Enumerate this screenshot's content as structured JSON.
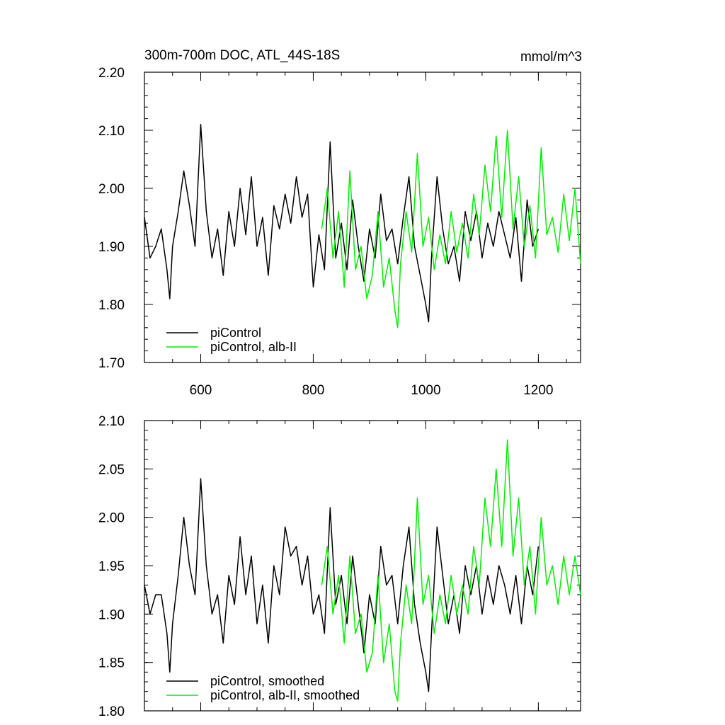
{
  "chart_data": [
    {
      "type": "line",
      "title": "300m-700m DOC, ATL_44S-18S",
      "units": "mmol/m^3",
      "xlim": [
        500,
        1275
      ],
      "ylim": [
        1.7,
        2.2
      ],
      "x_ticks": [
        600,
        800,
        1000,
        1200
      ],
      "x_tick_labels": [
        "600",
        "800",
        "1000",
        "1200"
      ],
      "y_ticks": [
        1.7,
        1.8,
        1.9,
        2.0,
        2.1,
        2.2
      ],
      "y_tick_labels": [
        "1.70",
        "1.80",
        "1.90",
        "2.00",
        "2.10",
        "2.20"
      ],
      "show_x_tick_labels": true,
      "legend_position": "bottom-left",
      "grid": false,
      "series": [
        {
          "name": "piControl",
          "color": "#000000",
          "x": [
            500,
            510,
            520,
            530,
            540,
            545,
            550,
            560,
            570,
            580,
            590,
            600,
            610,
            620,
            630,
            640,
            650,
            660,
            670,
            680,
            690,
            700,
            710,
            720,
            730,
            740,
            750,
            760,
            770,
            780,
            790,
            800,
            810,
            820,
            830,
            840,
            850,
            860,
            870,
            880,
            890,
            900,
            910,
            920,
            930,
            940,
            950,
            960,
            970,
            980,
            990,
            1000,
            1005,
            1010,
            1020,
            1030,
            1040,
            1050,
            1060,
            1070,
            1080,
            1090,
            1100,
            1110,
            1120,
            1130,
            1140,
            1150,
            1160,
            1170,
            1180,
            1190,
            1200
          ],
          "values": [
            1.95,
            1.88,
            1.9,
            1.93,
            1.86,
            1.81,
            1.9,
            1.96,
            2.03,
            1.97,
            1.9,
            2.11,
            1.96,
            1.88,
            1.93,
            1.85,
            1.96,
            1.9,
            2.0,
            1.92,
            2.02,
            1.9,
            1.95,
            1.85,
            1.97,
            1.93,
            1.99,
            1.94,
            2.02,
            1.95,
            1.99,
            1.83,
            1.92,
            1.86,
            2.08,
            1.88,
            1.94,
            1.86,
            1.98,
            1.9,
            1.84,
            1.93,
            1.88,
            1.99,
            1.91,
            1.93,
            1.87,
            1.95,
            2.02,
            1.9,
            1.85,
            1.8,
            1.77,
            1.88,
            2.02,
            1.93,
            1.87,
            1.9,
            1.84,
            1.96,
            1.91,
            1.96,
            1.88,
            1.94,
            1.9,
            1.96,
            1.92,
            1.88,
            1.95,
            1.84,
            1.98,
            1.9,
            1.93
          ]
        },
        {
          "name": "piControl, alb-II",
          "color": "#00ee00",
          "x": [
            815,
            825,
            835,
            845,
            855,
            865,
            875,
            885,
            895,
            905,
            915,
            925,
            935,
            945,
            950,
            955,
            965,
            975,
            985,
            995,
            1005,
            1015,
            1025,
            1035,
            1045,
            1055,
            1065,
            1075,
            1085,
            1095,
            1105,
            1115,
            1125,
            1135,
            1145,
            1155,
            1165,
            1175,
            1185,
            1195,
            1205,
            1215,
            1225,
            1235,
            1245,
            1255,
            1265,
            1275
          ],
          "values": [
            1.93,
            2.0,
            1.88,
            1.96,
            1.83,
            2.03,
            1.86,
            1.9,
            1.81,
            1.85,
            1.96,
            1.83,
            1.88,
            1.79,
            1.76,
            1.87,
            1.96,
            1.89,
            2.06,
            1.9,
            1.95,
            1.86,
            1.92,
            1.87,
            1.96,
            1.89,
            1.94,
            1.88,
            1.99,
            1.92,
            2.04,
            1.96,
            2.09,
            1.95,
            2.1,
            1.93,
            2.02,
            1.9,
            1.97,
            1.88,
            2.07,
            1.92,
            1.95,
            1.89,
            1.99,
            1.91,
            2.0,
            1.87
          ]
        }
      ]
    },
    {
      "type": "line",
      "title": "",
      "units": "",
      "xlim": [
        500,
        1275
      ],
      "ylim": [
        1.8,
        2.1
      ],
      "x_ticks": [
        600,
        800,
        1000,
        1200
      ],
      "x_tick_labels": [],
      "y_ticks": [
        1.8,
        1.85,
        1.9,
        1.95,
        2.0,
        2.05,
        2.1
      ],
      "y_tick_labels": [
        "1.80",
        "1.85",
        "1.90",
        "1.95",
        "2.00",
        "2.05",
        "2.10"
      ],
      "show_x_tick_labels": false,
      "legend_position": "bottom-left",
      "grid": false,
      "series": [
        {
          "name": "piControl, smoothed",
          "color": "#000000",
          "x": [
            500,
            510,
            520,
            530,
            540,
            545,
            550,
            560,
            570,
            580,
            590,
            600,
            610,
            620,
            630,
            640,
            650,
            660,
            670,
            680,
            690,
            700,
            710,
            720,
            730,
            740,
            750,
            760,
            770,
            780,
            790,
            800,
            810,
            820,
            830,
            840,
            850,
            860,
            870,
            880,
            890,
            900,
            910,
            920,
            930,
            940,
            950,
            960,
            970,
            980,
            990,
            1000,
            1005,
            1010,
            1020,
            1030,
            1040,
            1050,
            1060,
            1070,
            1080,
            1090,
            1100,
            1110,
            1120,
            1130,
            1140,
            1150,
            1160,
            1170,
            1180,
            1190,
            1200
          ],
          "values": [
            1.93,
            1.9,
            1.92,
            1.92,
            1.88,
            1.84,
            1.89,
            1.94,
            2.0,
            1.95,
            1.92,
            2.04,
            1.95,
            1.9,
            1.92,
            1.87,
            1.94,
            1.91,
            1.98,
            1.92,
            1.96,
            1.89,
            1.93,
            1.87,
            1.95,
            1.92,
            1.99,
            1.96,
            1.97,
            1.93,
            1.96,
            1.9,
            1.92,
            1.88,
            2.01,
            1.91,
            1.94,
            1.89,
            1.96,
            1.91,
            1.86,
            1.92,
            1.89,
            1.97,
            1.93,
            1.94,
            1.89,
            1.95,
            1.99,
            1.91,
            1.87,
            1.84,
            1.82,
            1.88,
            1.99,
            1.94,
            1.89,
            1.92,
            1.88,
            1.95,
            1.92,
            1.95,
            1.9,
            1.94,
            1.91,
            1.95,
            1.93,
            1.9,
            1.94,
            1.89,
            1.95,
            1.92,
            1.97
          ]
        },
        {
          "name": "piControl, alb-II, smoothed",
          "color": "#00ee00",
          "x": [
            815,
            825,
            835,
            845,
            855,
            865,
            875,
            885,
            895,
            905,
            915,
            925,
            935,
            945,
            950,
            955,
            965,
            975,
            985,
            995,
            1005,
            1015,
            1025,
            1035,
            1045,
            1055,
            1065,
            1075,
            1085,
            1095,
            1105,
            1115,
            1125,
            1135,
            1145,
            1155,
            1165,
            1175,
            1185,
            1195,
            1205,
            1215,
            1225,
            1235,
            1245,
            1255,
            1265,
            1275
          ],
          "values": [
            1.93,
            1.97,
            1.9,
            1.94,
            1.87,
            1.96,
            1.88,
            1.9,
            1.84,
            1.86,
            1.94,
            1.85,
            1.89,
            1.82,
            1.81,
            1.87,
            1.93,
            1.89,
            2.02,
            1.91,
            1.94,
            1.88,
            1.92,
            1.89,
            1.94,
            1.9,
            1.93,
            1.9,
            1.97,
            1.93,
            2.02,
            1.97,
            2.05,
            1.97,
            2.08,
            1.96,
            2.02,
            1.93,
            1.97,
            1.9,
            2.0,
            1.93,
            1.95,
            1.91,
            1.96,
            1.92,
            1.96,
            1.92
          ]
        }
      ]
    }
  ]
}
